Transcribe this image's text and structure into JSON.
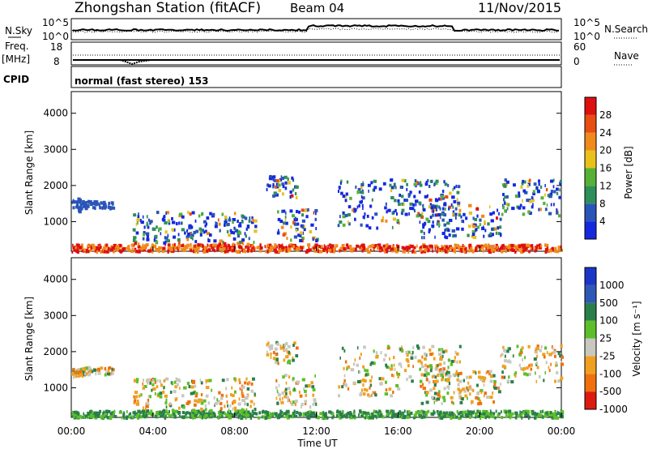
{
  "header": {
    "title": "Zhongshan Station (fitACF)",
    "beam": "Beam 04",
    "date": "11/Nov/2015"
  },
  "panels": {
    "nsky": {
      "left_label": "N.Sky",
      "left_ticks": [
        "10^5",
        "10^0"
      ],
      "right_ticks": [
        "10^5",
        "10^0"
      ],
      "right_label": "N.Search"
    },
    "freq": {
      "left_label_top": "Freq.",
      "left_label_unit": "[MHz]",
      "left_ticks": [
        "18",
        "8"
      ],
      "right_ticks": [
        "60",
        "0"
      ],
      "right_label": "Nave"
    },
    "cpid": {
      "label": "CPID",
      "value": "normal (fast stereo) 153"
    }
  },
  "chart_data": [
    {
      "type": "heatmap",
      "name": "power",
      "ylabel": "Slant Range [km]",
      "ylim": [
        180,
        4600
      ],
      "yticks": [
        "1000",
        "2000",
        "3000",
        "4000"
      ],
      "colorbar_label": "Power [dB]",
      "colorbar_ticks": [
        "4",
        "8",
        "12",
        "16",
        "20",
        "24",
        "28"
      ],
      "colors": [
        "#1428e0",
        "#2a55b8",
        "#2f8f5a",
        "#55b236",
        "#e8c21a",
        "#f08a1a",
        "#e84d12",
        "#dd1010"
      ]
    },
    {
      "type": "heatmap",
      "name": "velocity",
      "ylabel": "Slant Range [km]",
      "ylim": [
        180,
        4600
      ],
      "yticks": [
        "1000",
        "2000",
        "3000",
        "4000"
      ],
      "colorbar_label": "Velocity [m s⁻¹]",
      "colorbar_ticks": [
        "1000",
        "500",
        "100",
        "25",
        "-25",
        "-100",
        "-500",
        "-1000"
      ],
      "colors": [
        "#1a35c8",
        "#2e58b5",
        "#2a7f4a",
        "#5cbf2a",
        "#c8c8c0",
        "#f0a020",
        "#f07010",
        "#dd1a10"
      ]
    }
  ],
  "xaxis": {
    "label": "Time UT",
    "ticks": [
      "00:00",
      "04:00",
      "08:00",
      "12:00",
      "16:00",
      "20:00",
      "00:00"
    ]
  }
}
